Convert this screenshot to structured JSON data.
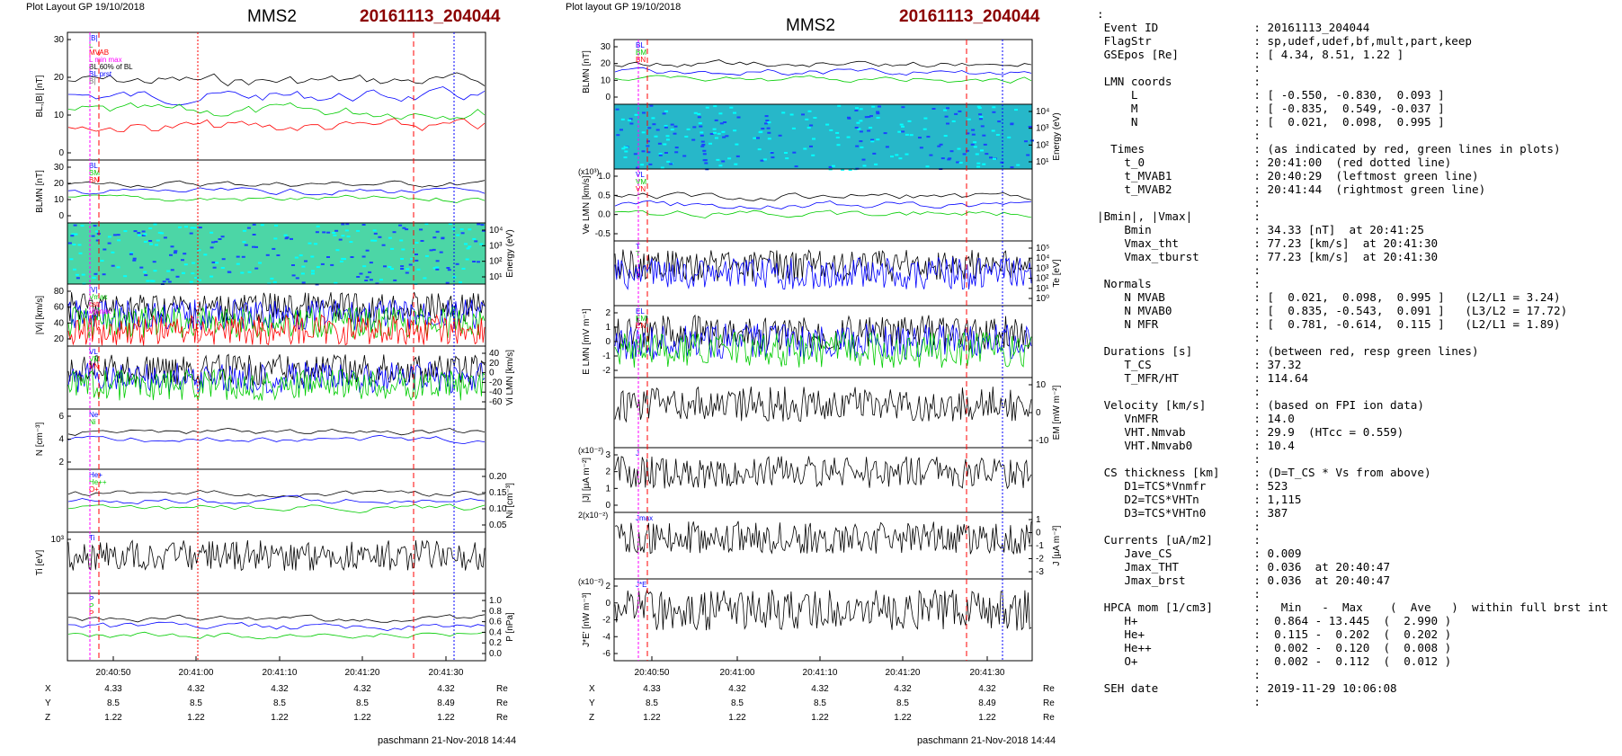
{
  "left_panel": {
    "header_small": "Plot Layout GP 19/10/2018",
    "title": "MMS2",
    "event": "20161113_204044",
    "footer": "paschmann 21-Nov-2018 14:44",
    "time_ticks": [
      "20:40:50",
      "20:41:00",
      "20:41:10",
      "20:41:20",
      "20:41:30"
    ],
    "pos_rows": [
      {
        "label": "X",
        "vals": [
          "4.33",
          "4.32",
          "4.32",
          "4.32",
          "4.32"
        ],
        "unit": "Re"
      },
      {
        "label": "Y",
        "vals": [
          "8.5",
          "8.5",
          "8.5",
          "8.5",
          "8.49"
        ],
        "unit": "Re"
      },
      {
        "label": "Z",
        "vals": [
          "1.22",
          "1.22",
          "1.22",
          "1.22",
          "1.22"
        ],
        "unit": "Re"
      }
    ],
    "panels": [
      {
        "ylabel": "BL,|B| [nT]",
        "yticks_left": [
          "30",
          "20",
          "10",
          "0"
        ],
        "legend": [
          "|B|",
          "L",
          "MVAB",
          "L min max",
          "BL 60% of BL",
          "BL prst",
          "B|"
        ]
      },
      {
        "ylabel": "BLMN [nT]",
        "yticks_left": [
          "30",
          "20",
          "10",
          "0"
        ],
        "legend": [
          "BL",
          "BM",
          "BN"
        ]
      },
      {
        "ylabel": "Energy (eV)",
        "yticks_right": [
          "10⁴",
          "10³",
          "10²",
          "10¹"
        ]
      },
      {
        "ylabel": "|Vi| [km/s]",
        "yticks_left": [
          "80",
          "60",
          "40",
          "20"
        ],
        "legend": [
          "|V|",
          "Vmax",
          "cst",
          "Vymax"
        ]
      },
      {
        "ylabel": "Vi LMN [km/s]",
        "yticks_right": [
          "40",
          "20",
          "0",
          "-20",
          "-40",
          "-60"
        ],
        "legend": [
          "VL",
          "VM",
          "VN"
        ]
      },
      {
        "ylabel": "N [cm⁻³]",
        "yticks_left": [
          "6",
          "4",
          "2"
        ],
        "legend": [
          "Ne",
          "Ni"
        ]
      },
      {
        "ylabel": "Ni [cm⁻³]",
        "yticks_right": [
          "0.20",
          "0.15",
          "0.10",
          "0.05"
        ],
        "legend": [
          "He+",
          "He++",
          "O+"
        ]
      },
      {
        "ylabel": "Ti [eV]",
        "yticks_left": [
          "10³"
        ],
        "legend": [
          "Ti"
        ]
      },
      {
        "ylabel": "P [nPa]",
        "yticks_right": [
          "1.0",
          "0.8",
          "0.6",
          "0.4",
          "0.2",
          "0.0"
        ],
        "legend": [
          "P",
          "P",
          "P"
        ]
      }
    ]
  },
  "middle_panel": {
    "header_small": "Plot layout GP 19/10/2018",
    "title": "MMS2",
    "event": "20161113_204044",
    "footer": "paschmann 21-Nov-2018 14:44",
    "time_ticks": [
      "20:40:50",
      "20:41:00",
      "20:41:10",
      "20:41:20",
      "20:41:30"
    ],
    "pos_rows": [
      {
        "label": "X",
        "vals": [
          "4.33",
          "4.32",
          "4.32",
          "4.32",
          "4.32"
        ],
        "unit": "Re"
      },
      {
        "label": "Y",
        "vals": [
          "8.5",
          "8.5",
          "8.5",
          "8.5",
          "8.49"
        ],
        "unit": "Re"
      },
      {
        "label": "Z",
        "vals": [
          "1.22",
          "1.22",
          "1.22",
          "1.22",
          "1.22"
        ],
        "unit": "Re"
      }
    ],
    "panels": [
      {
        "ylabel": "BLMN [nT]",
        "yticks_left": [
          "30",
          "20",
          "10",
          "0"
        ],
        "legend": [
          "BL",
          "BM",
          "BN"
        ]
      },
      {
        "ylabel": "Energy (eV)",
        "yticks_right": [
          "10⁴",
          "10³",
          "10²",
          "10¹"
        ]
      },
      {
        "ylabel": "Ve LMN [km/s]",
        "multiplier": "(x10³)",
        "yticks_left": [
          "1.0",
          "0.5",
          "0.0",
          "-0.5"
        ],
        "legend": [
          "VL",
          "VM",
          "VN"
        ]
      },
      {
        "ylabel": "Te [eV]",
        "yticks_right": [
          "10⁵",
          "10⁴",
          "10³",
          "10²",
          "10¹",
          "10⁰"
        ],
        "legend": [
          "T",
          "T"
        ]
      },
      {
        "ylabel": "E LMN [mV m⁻¹]",
        "yticks_left": [
          "2",
          "1",
          "0",
          "-1",
          "-2"
        ],
        "legend": [
          "EL",
          "EM",
          "EN"
        ]
      },
      {
        "ylabel": "EM [mW m⁻²]",
        "yticks_right": [
          "10",
          "0",
          "-10"
        ]
      },
      {
        "ylabel": "|J| [µA m⁻²]",
        "multiplier": "(x10⁻²)",
        "yticks_left": [
          "3",
          "2",
          "1",
          "0"
        ],
        "legend": [
          "J"
        ]
      },
      {
        "ylabel": "J [µA m⁻²]",
        "multiplier": "2(x10⁻²)",
        "yticks_right": [
          "1",
          "0",
          "-1",
          "-2",
          "-3"
        ],
        "legend": [
          "Jmax"
        ]
      },
      {
        "ylabel": "J*E' [nW m⁻³]",
        "multiplier": "(x10⁻²)",
        "yticks_left": [
          "2",
          "0",
          "-2",
          "-4",
          "-6"
        ],
        "legend": [
          "J*E'"
        ]
      }
    ]
  },
  "info_lines": [
    ":",
    " Event ID              : 20161113_204044",
    " FlagStr               : sp,udef,udef,bf,mult,part,keep",
    " GSEpos [Re]           : [ 4.34, 8.51, 1.22 ]",
    "                       :",
    " LMN coords            :",
    "     L                 : [ -0.550, -0.830,  0.093 ]",
    "     M                 : [ -0.835,  0.549, -0.037 ]",
    "     N                 : [  0.021,  0.098,  0.995 ]",
    "                       :",
    "  Times                : (as indicated by red, green lines in plots)",
    "    t_0                : 20:41:00  (red dotted line)",
    "    t_MVAB1            : 20:40:29  (leftmost green line)",
    "    t_MVAB2            : 20:41:44  (rightmost green line)",
    "                       :",
    "|Bmin|, |Vmax|         :",
    "    Bmin               : 34.33 [nT]  at 20:41:25",
    "    Vmax_tht           : 77.23 [km/s]  at 20:41:30",
    "    Vmax_tburst        : 77.23 [km/s]  at 20:41:30",
    "                       :",
    " Normals               :",
    "    N MVAB             : [  0.021,  0.098,  0.995 ]   (L2/L1 = 3.24)",
    "    N MVAB0            : [  0.835, -0.543,  0.091 ]   (L3/L2 = 17.72)",
    "    N MFR              : [  0.781, -0.614,  0.115 ]   (L2/L1 = 1.89)",
    "                       :",
    " Durations [s]         : (between red, resp green lines)",
    "    T_CS               : 37.32",
    "    T_MFR/HT           : 114.64",
    "                       :",
    " Velocity [km/s]       : (based on FPI ion data)",
    "    VnMFR              : 14.0",
    "    VHT.Nmvab          : 29.9  (HTcc = 0.559)",
    "    VHT.Nmvab0         : 10.4",
    "                       :",
    " CS thickness [km]     : (D=T_CS * Vs from above)",
    "    D1=TCS*Vnmfr       : 523",
    "    D2=TCS*VHTn        : 1,115",
    "    D3=TCS*VHTn0       : 387",
    "                       :",
    " Currents [uA/m2]      :",
    "    Jave_CS            : 0.009",
    "    Jmax_THT           : 0.036  at 20:40:47",
    "    Jmax_brst          : 0.036  at 20:40:47",
    "                       :",
    " HPCA mom [1/cm3]      :   Min   -  Max    (  Ave   )  within full brst int",
    "    H+                 :  0.864 - 13.445  (  2.990 )",
    "    He+                :  0.115 -  0.202  (  0.202 )",
    "    He++               :  0.002 -  0.120  (  0.008 )",
    "    O+                 :  0.002 -  0.112  (  0.012 )",
    "                       :",
    " SEH date              : 2019-11-29 10:06:08",
    "                       :"
  ],
  "colors": {
    "event": "#8b0000",
    "blue": "#0000ff",
    "green": "#00cc00",
    "red": "#ff0000",
    "magenta": "#ff00ff"
  },
  "chart_data": [
    {
      "type": "line",
      "title": "MMS2",
      "note": "Left stacked time-series panels (9 panels) for event 20161113_204044",
      "x": [
        "20:40:50",
        "20:41:00",
        "20:41:10",
        "20:41:20",
        "20:41:30"
      ]
    },
    {
      "type": "line",
      "title": "MMS2",
      "note": "Middle stacked time-series panels (9 panels) for event 20161113_204044",
      "x": [
        "20:40:50",
        "20:41:00",
        "20:41:10",
        "20:41:20",
        "20:41:30"
      ]
    }
  ]
}
